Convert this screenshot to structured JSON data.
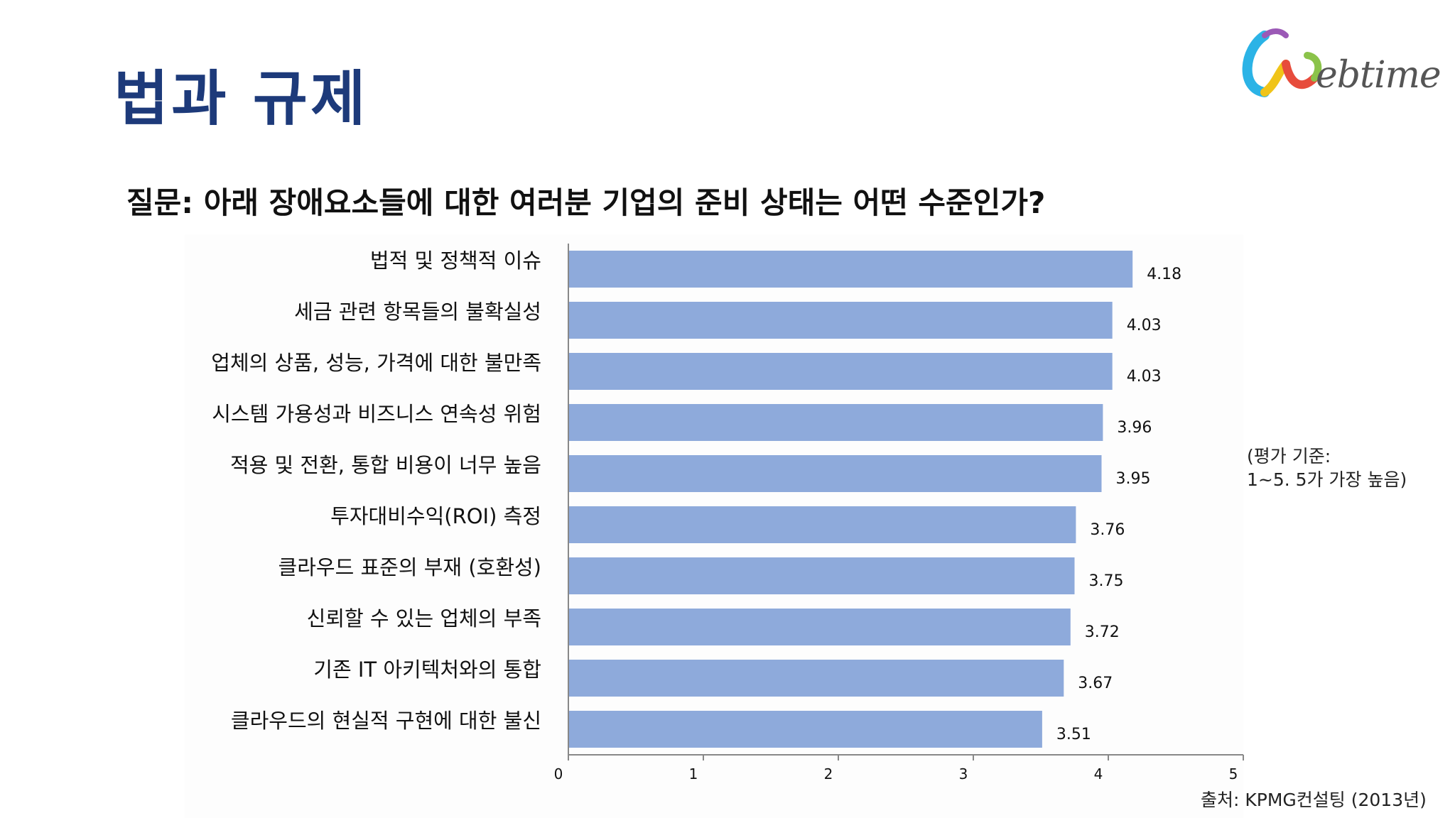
{
  "page": {
    "title": "법과 규제",
    "question": "질문: 아래 장애요소들에 대한 여러분 기업의 준비 상태는 어떤 수준인가?",
    "note": "(평가 기준:\n1~5. 5가 가장 높음)",
    "source": "출처: KPMG컨설팅 (2013년)",
    "logo_text": "ebtime",
    "logo_icon": "webtime-swirl-logo-icon"
  },
  "colors": {
    "title": "#1d3a7a",
    "bar": "#8eaadb",
    "axis": "#888888"
  },
  "chart_data": {
    "type": "bar",
    "orientation": "horizontal",
    "categories": [
      "법적 및 정책적 이슈",
      "세금 관련 항목들의 불확실성",
      "업체의 상품, 성능, 가격에 대한 불만족",
      "시스템 가용성과 비즈니스 연속성 위험",
      "적용 및 전환, 통합 비용이 너무 높음",
      "투자대비수익(ROI) 측정",
      "클라우드 표준의 부재 (호환성)",
      "신뢰할 수 있는 업체의 부족",
      "기존  IT 아키텍처와의 통합",
      "클라우드의 현실적 구현에 대한 불신"
    ],
    "values": [
      4.18,
      4.03,
      4.03,
      3.96,
      3.95,
      3.76,
      3.75,
      3.72,
      3.67,
      3.51
    ],
    "value_labels": [
      "4.18",
      "4.03",
      "4.03",
      "3.96",
      "3.95",
      "3.76",
      "3.75",
      "3.72",
      "3.67",
      "3.51"
    ],
    "xlim": [
      0,
      5
    ],
    "xticks": [
      "0",
      "1",
      "2",
      "3",
      "4",
      "5"
    ],
    "grid": false,
    "legend": "none"
  }
}
